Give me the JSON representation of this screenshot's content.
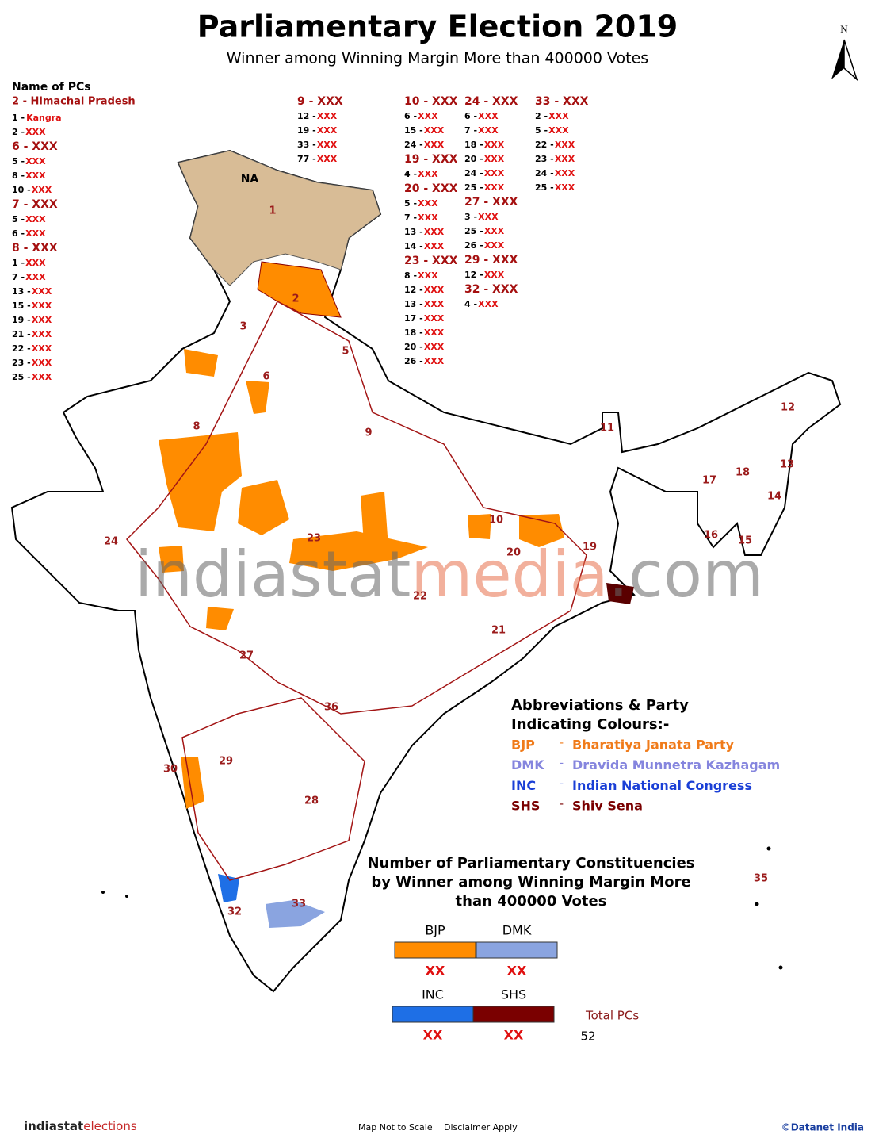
{
  "header": {
    "title": "Parliamentary Election 2019",
    "subtitle": "Winner among Winning Margin More than 400000 Votes"
  },
  "north": "N",
  "pc_list": {
    "heading": "Name of PCs",
    "columns": [
      [
        {
          "state": "2 - Himachal Pradesh",
          "items": [
            {
              "no": "1 -",
              "name": "Kangra"
            },
            {
              "no": "2 -",
              "name": "XXX"
            }
          ]
        },
        {
          "state": "6 - XXX",
          "items": [
            {
              "no": "5 -",
              "name": "XXX"
            },
            {
              "no": "8 -",
              "name": "XXX"
            },
            {
              "no": "10 -",
              "name": "XXX"
            }
          ]
        },
        {
          "state": "7 - XXX",
          "items": [
            {
              "no": "5 -",
              "name": "XXX"
            },
            {
              "no": "6 -",
              "name": "XXX"
            }
          ]
        },
        {
          "state": "8 - XXX",
          "items": [
            {
              "no": "1 -",
              "name": "XXX"
            },
            {
              "no": "7 -",
              "name": "XXX"
            },
            {
              "no": "13 -",
              "name": "XXX"
            },
            {
              "no": "15 -",
              "name": "XXX"
            },
            {
              "no": "19 -",
              "name": "XXX"
            },
            {
              "no": "21 -",
              "name": "XXX"
            },
            {
              "no": "22 -",
              "name": "XXX"
            },
            {
              "no": "23 -",
              "name": "XXX"
            },
            {
              "no": "25 -",
              "name": "XXX"
            }
          ]
        }
      ],
      [
        {
          "state": "9 - XXX",
          "items": [
            {
              "no": "12 -",
              "name": "XXX"
            },
            {
              "no": "19 -",
              "name": "XXX"
            },
            {
              "no": "33 -",
              "name": "XXX"
            },
            {
              "no": "77 -",
              "name": "XXX"
            }
          ]
        }
      ],
      [
        {
          "state": "10 - XXX",
          "items": [
            {
              "no": "6 -",
              "name": "XXX"
            },
            {
              "no": "15 -",
              "name": "XXX"
            },
            {
              "no": "24 -",
              "name": "XXX"
            }
          ]
        },
        {
          "state": "19 - XXX",
          "items": [
            {
              "no": "4 -",
              "name": "XXX"
            }
          ]
        },
        {
          "state": "20 - XXX",
          "items": [
            {
              "no": "5 -",
              "name": "XXX"
            },
            {
              "no": "7 -",
              "name": "XXX"
            },
            {
              "no": "13 -",
              "name": "XXX"
            },
            {
              "no": "14 -",
              "name": "XXX"
            }
          ]
        },
        {
          "state": "23 - XXX",
          "items": [
            {
              "no": "8 -",
              "name": "XXX"
            },
            {
              "no": "12 -",
              "name": "XXX"
            },
            {
              "no": "13 -",
              "name": "XXX"
            },
            {
              "no": "17 -",
              "name": "XXX"
            },
            {
              "no": "18 -",
              "name": "XXX"
            },
            {
              "no": "20 -",
              "name": "XXX"
            },
            {
              "no": "26 -",
              "name": "XXX"
            }
          ]
        }
      ],
      [
        {
          "state": "24 - XXX",
          "items": [
            {
              "no": "6 -",
              "name": "XXX"
            },
            {
              "no": "7 -",
              "name": "XXX"
            },
            {
              "no": "18 -",
              "name": "XXX"
            },
            {
              "no": "20 -",
              "name": "XXX"
            },
            {
              "no": "24 -",
              "name": "XXX"
            },
            {
              "no": "25 -",
              "name": "XXX"
            }
          ]
        },
        {
          "state": "27 - XXX",
          "items": [
            {
              "no": "3 -",
              "name": "XXX"
            },
            {
              "no": "25 -",
              "name": "XXX"
            },
            {
              "no": "26 -",
              "name": "XXX"
            }
          ]
        },
        {
          "state": "29 - XXX",
          "items": [
            {
              "no": "12 -",
              "name": "XXX"
            }
          ]
        },
        {
          "state": "32 - XXX",
          "items": [
            {
              "no": "4 -",
              "name": "XXX"
            }
          ]
        }
      ],
      [
        {
          "state": "33 - XXX",
          "items": [
            {
              "no": "2 -",
              "name": "XXX"
            },
            {
              "no": "5 -",
              "name": "XXX"
            },
            {
              "no": "22 -",
              "name": "XXX"
            },
            {
              "no": "23 -",
              "name": "XXX"
            },
            {
              "no": "24 -",
              "name": "XXX"
            },
            {
              "no": "25 -",
              "name": "XXX"
            }
          ]
        }
      ]
    ]
  },
  "map": {
    "na_label": "NA",
    "state_labels": [
      "1",
      "2",
      "3",
      "5",
      "6",
      "8",
      "9",
      "10",
      "11",
      "12",
      "13",
      "14",
      "15",
      "16",
      "17",
      "18",
      "19",
      "20",
      "21",
      "22",
      "23",
      "24",
      "27",
      "28",
      "29",
      "30",
      "32",
      "33",
      "35",
      "36"
    ]
  },
  "watermark": {
    "part1": "indiastat",
    "part2": "media",
    "part3": ".com"
  },
  "legend": {
    "heading_line1": "Abbreviations & Party",
    "heading_line2": "Indicating Colours:-",
    "entries": [
      {
        "abbr": "BJP",
        "dash": "-",
        "name": "Bharatiya Janata Party",
        "color": "#f07b1a"
      },
      {
        "abbr": "DMK",
        "dash": "-",
        "name": "Dravida Munnetra Kazhagam",
        "color": "#8585de"
      },
      {
        "abbr": "INC",
        "dash": "-",
        "name": "Indian National Congress",
        "color": "#1a3fd6"
      },
      {
        "abbr": "SHS",
        "dash": "-",
        "name": "Shiv Sena",
        "color": "#7a0000"
      }
    ]
  },
  "summary": {
    "title_lines": [
      "Number of Parliamentary Constituencies",
      "by Winner among Winning Margin More",
      "than 400000 Votes"
    ],
    "bars": [
      {
        "party": "BJP",
        "count": "XX",
        "color": "#ff8c00"
      },
      {
        "party": "DMK",
        "count": "XX",
        "color": "#8aa4e0"
      },
      {
        "party": "INC",
        "count": "XX",
        "color": "#1e6fe6"
      },
      {
        "party": "SHS",
        "count": "XX",
        "color": "#7a0000"
      }
    ],
    "total_label": "Total PCs",
    "total_value": "52"
  },
  "footer": {
    "brand1": "indiastat",
    "brand2": "elections",
    "note1": "Map Not to Scale",
    "note2": "Disclaimer Apply",
    "copyright": "©Datanet India"
  }
}
